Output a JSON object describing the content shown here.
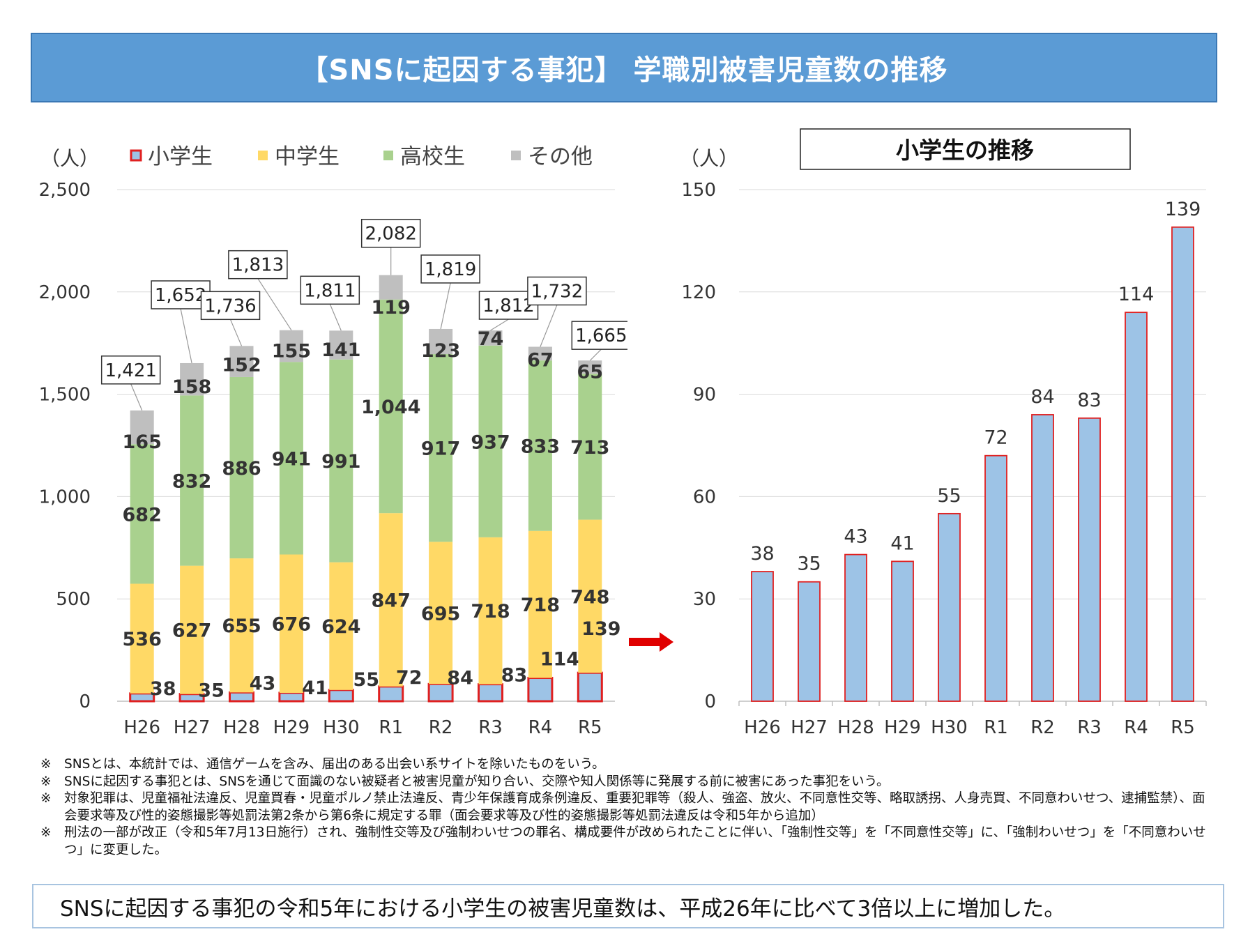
{
  "title": "【SNSに起因する事犯】 学職別被害児童数の推移",
  "chart_data": [
    {
      "type": "bar",
      "stacked": true,
      "unit_label": "（人）",
      "categories": [
        "H26",
        "H27",
        "H28",
        "H29",
        "H30",
        "R1",
        "R2",
        "R3",
        "R4",
        "R5"
      ],
      "ylim": [
        0,
        2500
      ],
      "yticks": [
        0,
        500,
        1000,
        1500,
        2000,
        2500
      ],
      "ytick_labels": [
        "0",
        "500",
        "1,000",
        "1,500",
        "2,000",
        "2,500"
      ],
      "legend_position": "top",
      "grid": true,
      "series": [
        {
          "name": "小学生",
          "color": "#9dc3e6",
          "border": "#e02020",
          "values": [
            38,
            35,
            43,
            41,
            55,
            72,
            84,
            83,
            114,
            139
          ]
        },
        {
          "name": "中学生",
          "color": "#ffd966",
          "values": [
            536,
            627,
            655,
            676,
            624,
            847,
            695,
            718,
            718,
            748
          ]
        },
        {
          "name": "高校生",
          "color": "#a9d18e",
          "values": [
            682,
            832,
            886,
            941,
            991,
            1044,
            917,
            937,
            833,
            713
          ]
        },
        {
          "name": "その他",
          "color": "#bfbfbf",
          "values": [
            165,
            158,
            152,
            155,
            141,
            119,
            123,
            74,
            67,
            65
          ]
        }
      ],
      "totals": [
        1421,
        1652,
        1736,
        1813,
        1811,
        2082,
        1819,
        1812,
        1732,
        1665
      ]
    },
    {
      "type": "bar",
      "title": "小学生の推移",
      "unit_label": "（人）",
      "categories": [
        "H26",
        "H27",
        "H28",
        "H29",
        "H30",
        "R1",
        "R2",
        "R3",
        "R4",
        "R5"
      ],
      "values": [
        38,
        35,
        43,
        41,
        55,
        72,
        84,
        83,
        114,
        139
      ],
      "ylim": [
        0,
        150
      ],
      "yticks": [
        0,
        30,
        60,
        90,
        120,
        150
      ],
      "grid": true,
      "color": "#9dc3e6",
      "border": "#e02020"
    }
  ],
  "notes": [
    {
      "mark": "※",
      "text": "SNSとは、本統計では、通信ゲームを含み、届出のある出会い系サイトを除いたものをいう。"
    },
    {
      "mark": "※",
      "text": "SNSに起因する事犯とは、SNSを通じて面識のない被疑者と被害児童が知り合い、交際や知人関係等に発展する前に被害にあった事犯をいう。"
    },
    {
      "mark": "※",
      "text": "対象犯罪は、児童福祉法違反、児童買春・児童ポルノ禁止法違反、青少年保護育成条例違反、重要犯罪等（殺人、強盗、放火、不同意性交等、略取誘拐、人身売買、不同意わいせつ、逮捕監禁）、面会要求等及び性的姿態撮影等処罰法第2条から第6条に規定する罪（面会要求等及び性的姿態撮影等処罰法違反は令和5年から追加）"
    },
    {
      "mark": "※",
      "text": "刑法の一部が改正（令和5年7月13日施行）され、強制性交等及び強制わいせつの罪名、構成要件が改められたことに伴い、「強制性交等」を「不同意性交等」に、「強制わいせつ」を「不同意わいせつ」に変更した。"
    }
  ],
  "conclusion": "SNSに起因する事犯の令和5年における小学生の被害児童数は、平成26年に比べて3倍以上に増加した。",
  "arrow_color": "#e00000"
}
